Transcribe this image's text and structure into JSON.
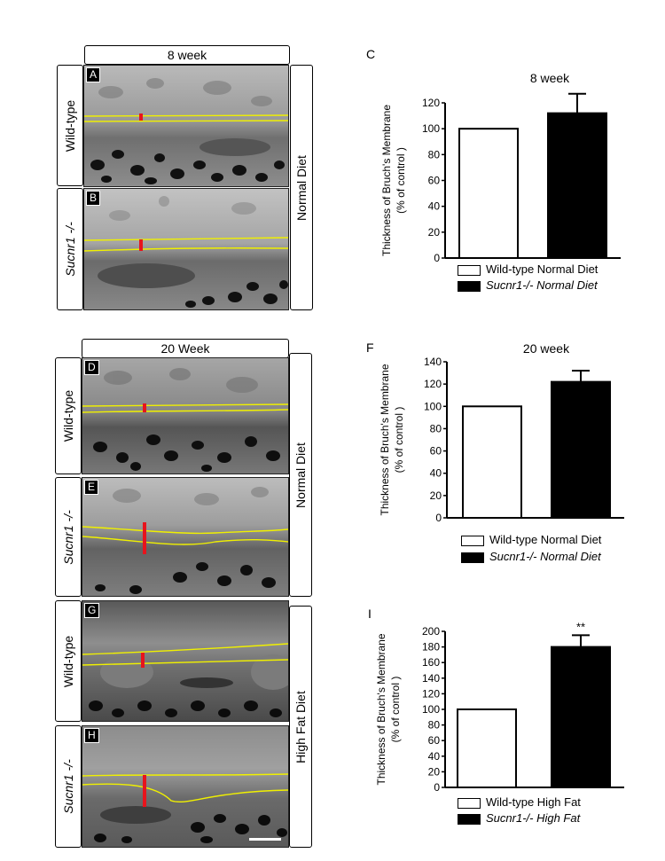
{
  "headers": {
    "week8": "8 week",
    "week20": "20 Week"
  },
  "row_labels": {
    "wild_type": "Wild-type",
    "knockout": "Sucnr1 -/-"
  },
  "diet_labels": {
    "normal": "Normal Diet",
    "high_fat": "High Fat Diet"
  },
  "panel_letters": {
    "A": "A",
    "B": "B",
    "D": "D",
    "E": "E",
    "G": "G",
    "H": "H"
  },
  "colors": {
    "outline": "#f0f000",
    "marker": "#e8141c",
    "scalebar": "#ffffff"
  },
  "chart_data": [
    {
      "panel": "C",
      "type": "bar",
      "title": "8 week",
      "ylabel": "Thickness of Bruch's Membrane (% of control )",
      "ylim": [
        0,
        120
      ],
      "yticks": [
        "0",
        "20",
        "40",
        "60",
        "80",
        "100",
        "120"
      ],
      "categories": [
        "Wild-type Normal Diet",
        "Sucnr1-/- Normal Diet"
      ],
      "values": [
        100,
        112
      ],
      "errors": [
        0,
        15
      ],
      "bar_colors": [
        "#ffffff",
        "#000000"
      ],
      "legend": [
        {
          "name": "Wild-type Normal Diet",
          "color": "#ffffff"
        },
        {
          "name": "Sucnr1-/- Normal Diet",
          "color": "#000000"
        }
      ],
      "annotations": []
    },
    {
      "panel": "F",
      "type": "bar",
      "title": "20 week",
      "ylabel": "Thickness of Bruch's Membrane (% of control )",
      "ylim": [
        0,
        140
      ],
      "yticks": [
        "0",
        "20",
        "40",
        "60",
        "80",
        "100",
        "120",
        "140"
      ],
      "categories": [
        "Wild-type Normal Diet",
        "Sucnr1-/- Normal Diet"
      ],
      "values": [
        100,
        122
      ],
      "errors": [
        0,
        10
      ],
      "bar_colors": [
        "#ffffff",
        "#000000"
      ],
      "legend": [
        {
          "name": "Wild-type Normal Diet",
          "color": "#ffffff"
        },
        {
          "name": "Sucnr1-/- Normal Diet",
          "color": "#000000"
        }
      ],
      "annotations": []
    },
    {
      "panel": "I",
      "type": "bar",
      "title": "",
      "ylabel": "Thickness of Bruch's Membrane (% of control )",
      "ylim": [
        0,
        200
      ],
      "yticks": [
        "0",
        "20",
        "40",
        "60",
        "80",
        "100",
        "120",
        "140",
        "160",
        "180",
        "200"
      ],
      "categories": [
        "Wild-type High Fat",
        "Sucnr1-/- High Fat"
      ],
      "values": [
        100,
        180
      ],
      "errors": [
        0,
        15
      ],
      "bar_colors": [
        "#ffffff",
        "#000000"
      ],
      "legend": [
        {
          "name": "Wild-type High Fat",
          "color": "#ffffff"
        },
        {
          "name": "Sucnr1-/- High Fat",
          "color": "#000000"
        }
      ],
      "annotations": [
        "**"
      ]
    }
  ]
}
